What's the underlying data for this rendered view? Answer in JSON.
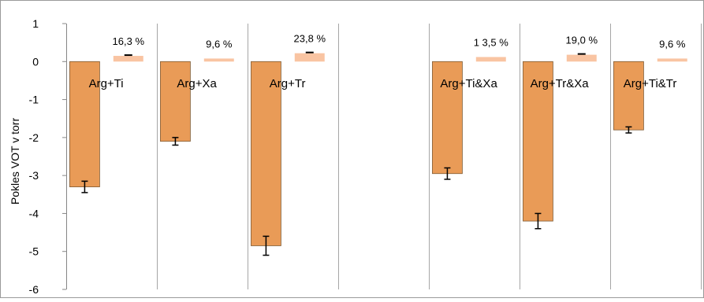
{
  "chart_data": {
    "type": "bar",
    "ylabel": "Pokles VOT v torr",
    "xlabel": "",
    "title": "",
    "ylim": [
      -6,
      1
    ],
    "y_ticks": [
      "1",
      "0",
      "-1",
      "-2",
      "-3",
      "-4",
      "-5",
      "-6"
    ],
    "y_tick_values": [
      1,
      0,
      -1,
      -2,
      -3,
      -4,
      -5,
      -6
    ],
    "grid": "vertical category separators",
    "slot_count": 7,
    "categories": [
      "Arg+Ti",
      "Arg+Xa",
      "Arg+Tr",
      "",
      "Arg+Ti&Xa",
      "Arg+Tr&Xa",
      "Arg+Ti&Tr"
    ],
    "series": [
      {
        "color": "#E99B57",
        "values": [
          -3.3,
          -2.1,
          -4.85,
          null,
          -2.95,
          -4.2,
          -1.8
        ],
        "error": [
          0.15,
          0.1,
          0.25,
          null,
          0.15,
          0.2,
          0.08
        ]
      },
      {
        "color": "#F9C4A2",
        "values": [
          0.15,
          0.08,
          0.22,
          null,
          0.12,
          0.18,
          0.08
        ],
        "error": [
          0.02,
          0,
          0.02,
          null,
          0,
          0.02,
          0
        ],
        "labels": [
          "16,3 %",
          "9,6 %",
          "23,8 %",
          "",
          "1 3,5 %",
          "19,0 %",
          "9,6 %"
        ]
      }
    ]
  }
}
